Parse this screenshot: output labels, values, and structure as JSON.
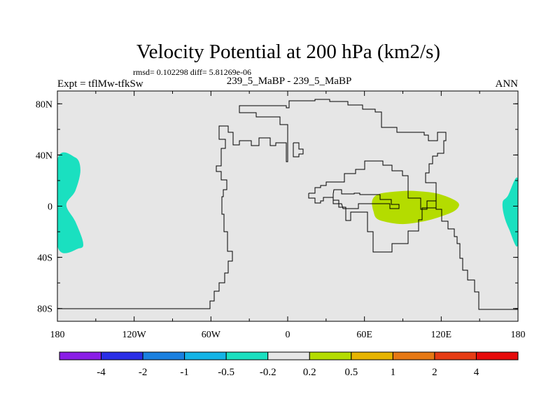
{
  "chart_data": {
    "type": "heatmap",
    "title": "Velocity Potential at 200 hPa (km2/s)",
    "stats": "rmsd= 0.102298 diff= 5.81269e-06",
    "subtitle": "239_5_MaBP - 239_5_MaBP",
    "left_label": "Expt = tflMw-tfkSw",
    "right_label": "ANN",
    "xlim": [
      -180,
      180
    ],
    "ylim": [
      -90,
      90
    ],
    "x_ticks": [
      {
        "value": -180,
        "label": "180"
      },
      {
        "value": -120,
        "label": "120W"
      },
      {
        "value": -60,
        "label": "60W"
      },
      {
        "value": 0,
        "label": "0"
      },
      {
        "value": 60,
        "label": "60E"
      },
      {
        "value": 120,
        "label": "120E"
      },
      {
        "value": 180,
        "label": "180"
      }
    ],
    "y_ticks": [
      {
        "value": 80,
        "label": "80N"
      },
      {
        "value": 40,
        "label": "40N"
      },
      {
        "value": 0,
        "label": "0"
      },
      {
        "value": -40,
        "label": "40S"
      },
      {
        "value": -80,
        "label": "80S"
      }
    ],
    "colorbar": {
      "colors": [
        "#8a1ee6",
        "#2a2ee6",
        "#1a80e0",
        "#14b4e6",
        "#1ae0c0",
        "#e6e6e6",
        "#b4dc00",
        "#e6b400",
        "#e67814",
        "#e63c14",
        "#e60a0a"
      ],
      "labels": [
        "-4",
        "-2",
        "-1",
        "-0.5",
        "-0.2",
        "0.2",
        "0.5",
        "1",
        "2",
        "4"
      ]
    },
    "regions": [
      {
        "name": "west-negative-region",
        "color": "#1ae0c0",
        "points": [
          [
            -180,
            36
          ],
          [
            -166,
            38
          ],
          [
            -162,
            28
          ],
          [
            -166,
            12
          ],
          [
            -173,
            1
          ],
          [
            -166,
            -12
          ],
          [
            -160,
            -28
          ],
          [
            -163,
            -33
          ],
          [
            -180,
            -31
          ]
        ]
      },
      {
        "name": "east-negative-region",
        "color": "#1ae0c0",
        "points": [
          [
            180,
            21
          ],
          [
            172,
            8
          ],
          [
            168,
            3
          ],
          [
            169,
            -7
          ],
          [
            173,
            -18
          ],
          [
            180,
            -30
          ]
        ]
      },
      {
        "name": "central-positive-region",
        "color": "#b4dc00",
        "points": [
          [
            66,
            4
          ],
          [
            70,
            9
          ],
          [
            80,
            11
          ],
          [
            95,
            12
          ],
          [
            110,
            11
          ],
          [
            120,
            9
          ],
          [
            130,
            5
          ],
          [
            134,
            1
          ],
          [
            130,
            -4
          ],
          [
            120,
            -8
          ],
          [
            110,
            -11
          ],
          [
            100,
            -13
          ],
          [
            90,
            -14
          ],
          [
            80,
            -13
          ],
          [
            70,
            -10
          ],
          [
            67,
            -4
          ]
        ]
      }
    ]
  }
}
